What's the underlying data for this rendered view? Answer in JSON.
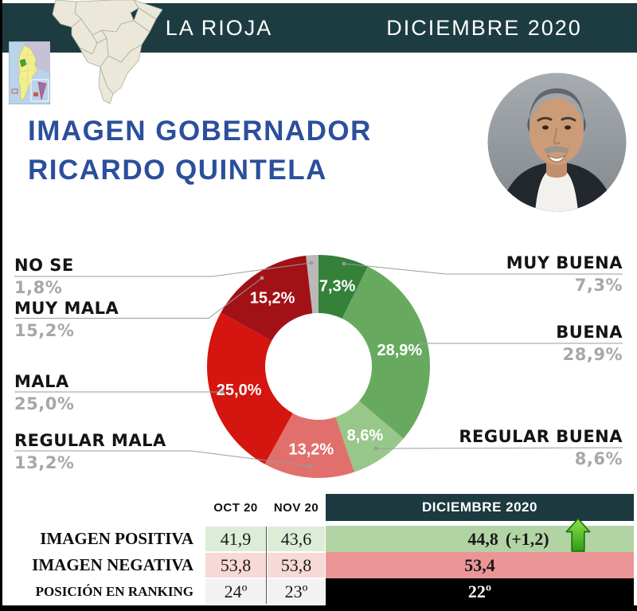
{
  "banner": {
    "region": "LA RIOJA",
    "period": "DICIEMBRE 2020",
    "bg_color": "#1d3c41"
  },
  "title": {
    "line1": "IMAGEN GOBERNADOR",
    "line2": "RICARDO QUINTELA",
    "color": "#2b4f9c"
  },
  "photo": {
    "subject": "Ricardo Quintela"
  },
  "maps": {
    "small_map": "argentina-la-rioja-locator-map",
    "big_map": "northwest-argentina-region-map"
  },
  "chart_data": {
    "type": "pie",
    "style": "donut",
    "title": "Imagen Gobernador Ricardo Quintela",
    "unit": "%",
    "start_angle_deg": 0,
    "clockwise": true,
    "segments": [
      {
        "label": "MUY BUENA",
        "value": 7.3,
        "display": "7,3%",
        "color": "#35813a"
      },
      {
        "label": "BUENA",
        "value": 28.9,
        "display": "28,9%",
        "color": "#67aa5f"
      },
      {
        "label": "REGULAR BUENA",
        "value": 8.6,
        "display": "8,6%",
        "color": "#98c78a"
      },
      {
        "label": "REGULAR MALA",
        "value": 13.2,
        "display": "13,2%",
        "color": "#e1706d"
      },
      {
        "label": "MALA",
        "value": 25.0,
        "display": "25,0%",
        "color": "#d5150f"
      },
      {
        "label": "MUY MALA",
        "value": 15.2,
        "display": "15,2%",
        "color": "#a21116"
      },
      {
        "label": "NO SE",
        "value": 1.8,
        "display": "1,8%",
        "color": "#b9b9b9"
      }
    ]
  },
  "table": {
    "col_oct": "OCT 20",
    "col_nov": "NOV 20",
    "col_dic": "DICIEMBRE 2020",
    "rows": [
      {
        "label": "IMAGEN POSITIVA",
        "oct": "41,9",
        "nov": "43,6",
        "dic": "44,8",
        "dic_delta": "(+1,2)",
        "trend_icon": "green-up-arrow"
      },
      {
        "label": "IMAGEN NEGATIVA",
        "oct": "53,8",
        "nov": "53,8",
        "dic": "53,4"
      },
      {
        "label": "POSICIÓN EN RANKING",
        "oct": "24º",
        "nov": "23º",
        "dic": "22º"
      }
    ],
    "colors": {
      "positiva_light": "#ddecd7",
      "positiva_strong": "#b2d4a5",
      "negativa_light": "#f7d9d7",
      "negativa_strong": "#ec9597",
      "ranking_light": "#f2f2f2",
      "ranking_strong": "#000000",
      "header_teal": "#1c3a40"
    }
  }
}
